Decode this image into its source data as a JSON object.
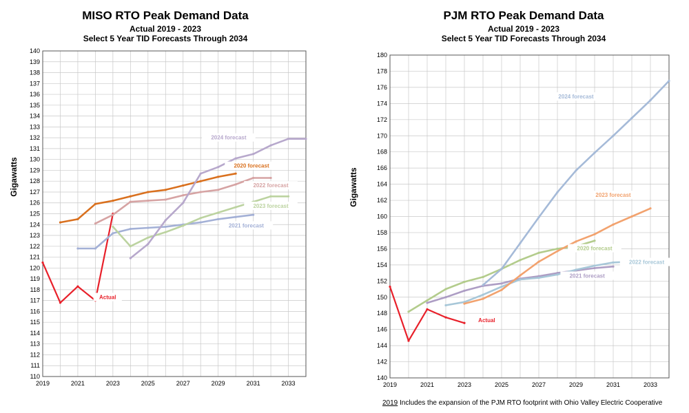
{
  "chart_data": [
    {
      "type": "line",
      "title": "MISO RTO  Peak Demand Data",
      "subtitle": "Actual 2019 - 2023",
      "subtitle2": "Select 5 Year TID Forecasts Through 2034",
      "ylabel": "Gigawatts",
      "xlabel": "",
      "xlim": [
        2019,
        2034
      ],
      "ylim": [
        110,
        140
      ],
      "ytick_step": 1,
      "xticks": [
        "2019",
        "2021",
        "2023",
        "2025",
        "2027",
        "2029",
        "2031",
        "2033"
      ],
      "yticks": [
        "110",
        "111",
        "112",
        "113",
        "114",
        "115",
        "116",
        "117",
        "118",
        "119",
        "120",
        "121",
        "122",
        "123",
        "124",
        "125",
        "126",
        "127",
        "128",
        "129",
        "130",
        "131",
        "132",
        "133",
        "134",
        "135",
        "136",
        "137",
        "138",
        "139",
        "140"
      ],
      "grid": true,
      "series": [
        {
          "name": "Actual",
          "color": "#e8202a",
          "x": [
            2019,
            2020,
            2021,
            2022,
            2023
          ],
          "y": [
            120.5,
            116.8,
            118.3,
            117.0,
            125.0
          ],
          "label_x": 2022.7,
          "label_y": 117.2
        },
        {
          "name": "2020 forecast",
          "color": "#d9701e",
          "x": [
            2020,
            2021,
            2022,
            2023,
            2024,
            2025,
            2026,
            2027,
            2028,
            2029,
            2030
          ],
          "y": [
            124.2,
            124.5,
            125.9,
            126.2,
            126.6,
            127.0,
            127.2,
            127.6,
            128.0,
            128.4,
            128.7
          ],
          "label_x": 2030.9,
          "label_y": 129.3
        },
        {
          "name": "2021 forecast",
          "color": "#a3b0d6",
          "x": [
            2021,
            2022,
            2023,
            2024,
            2025,
            2026,
            2027,
            2028,
            2029,
            2030,
            2031
          ],
          "y": [
            121.8,
            121.8,
            123.2,
            123.6,
            123.7,
            123.8,
            124.0,
            124.2,
            124.5,
            124.7,
            124.9
          ],
          "label_x": 2030.6,
          "label_y": 123.8
        },
        {
          "name": "2022 forecast",
          "color": "#d6a3a3",
          "x": [
            2022,
            2023,
            2024,
            2025,
            2026,
            2027,
            2028,
            2029,
            2030,
            2031,
            2032
          ],
          "y": [
            124.1,
            124.9,
            126.1,
            126.2,
            126.3,
            126.7,
            127.0,
            127.2,
            127.7,
            128.3,
            128.3
          ],
          "label_x": 2032.0,
          "label_y": 127.5
        },
        {
          "name": "2023 forecast",
          "color": "#bcd3a0",
          "x": [
            2023,
            2024,
            2025,
            2026,
            2027,
            2028,
            2029,
            2030,
            2031,
            2032,
            2033
          ],
          "y": [
            123.8,
            122.0,
            122.8,
            123.3,
            123.9,
            124.6,
            125.1,
            125.6,
            126.1,
            126.6,
            126.6
          ],
          "label_x": 2032.0,
          "label_y": 125.6
        },
        {
          "name": "2024 forecast",
          "color": "#b7a8cc",
          "x": [
            2024,
            2025,
            2026,
            2027,
            2028,
            2029,
            2030,
            2031,
            2032,
            2033,
            2034
          ],
          "y": [
            120.9,
            122.2,
            124.4,
            126.0,
            128.7,
            129.3,
            130.1,
            130.5,
            131.3,
            131.9,
            131.9
          ],
          "label_x": 2029.6,
          "label_y": 131.9
        }
      ]
    },
    {
      "type": "line",
      "title": "PJM  RTO Peak Demand Data",
      "subtitle": "Actual 2019 - 2023",
      "subtitle2": "Select 5 Year TID Forecasts Through 2034",
      "ylabel": "Gigawatts",
      "xlabel": "",
      "xlim": [
        2019,
        2034
      ],
      "ylim": [
        140,
        180
      ],
      "ytick_step": 2,
      "xticks": [
        "2019",
        "2021",
        "2023",
        "2025",
        "2027",
        "2029",
        "2031",
        "2033"
      ],
      "yticks": [
        "140",
        "142",
        "144",
        "146",
        "148",
        "150",
        "152",
        "154",
        "156",
        "158",
        "160",
        "162",
        "164",
        "166",
        "168",
        "170",
        "172",
        "174",
        "176",
        "178",
        "180"
      ],
      "grid": true,
      "series": [
        {
          "name": "Actual",
          "color": "#e8202a",
          "x": [
            2019,
            2020,
            2021,
            2022,
            2023
          ],
          "y": [
            151.3,
            144.6,
            148.5,
            147.5,
            146.8
          ],
          "label_x": 2024.2,
          "label_y": 147.0
        },
        {
          "name": "2020 forecast",
          "color": "#b3cc8c",
          "x": [
            2020,
            2021,
            2022,
            2023,
            2024,
            2025,
            2026,
            2027,
            2028,
            2029,
            2030
          ],
          "y": [
            148.2,
            149.6,
            151.0,
            151.9,
            152.5,
            153.5,
            154.6,
            155.5,
            156.0,
            156.3,
            157.0
          ],
          "label_x": 2030.0,
          "label_y": 155.9
        },
        {
          "name": "2021 forecast",
          "color": "#ad9dc4",
          "x": [
            2021,
            2022,
            2023,
            2024,
            2025,
            2026,
            2027,
            2028,
            2029,
            2030,
            2031
          ],
          "y": [
            149.3,
            150.0,
            150.8,
            151.4,
            151.7,
            152.3,
            152.6,
            153.0,
            153.3,
            153.6,
            153.8
          ],
          "label_x": 2029.6,
          "label_y": 152.5
        },
        {
          "name": "2022 forecast",
          "color": "#a7c7d8",
          "x": [
            2022,
            2023,
            2024,
            2025,
            2026,
            2027,
            2028,
            2029,
            2030,
            2031,
            2032
          ],
          "y": [
            149.0,
            149.4,
            150.3,
            151.3,
            152.2,
            152.4,
            152.8,
            153.4,
            153.9,
            154.3,
            154.4
          ],
          "label_x": 2032.8,
          "label_y": 154.2
        },
        {
          "name": "2023 forecast",
          "color": "#f2a26e",
          "x": [
            2023,
            2024,
            2025,
            2026,
            2027,
            2028,
            2029,
            2030,
            2031,
            2032,
            2033
          ],
          "y": [
            149.2,
            149.8,
            150.9,
            152.7,
            154.4,
            155.7,
            156.9,
            157.8,
            159.0,
            160.0,
            161.0
          ],
          "label_x": 2031.0,
          "label_y": 162.5
        },
        {
          "name": "2024 forecast",
          "color": "#a5bad8",
          "x": [
            2024,
            2025,
            2026,
            2027,
            2028,
            2029,
            2030,
            2031,
            2032,
            2033,
            2034
          ],
          "y": [
            151.5,
            153.5,
            156.7,
            159.9,
            163.0,
            165.7,
            167.9,
            170.0,
            172.2,
            174.4,
            176.8
          ],
          "label_x": 2029.0,
          "label_y": 174.7
        }
      ]
    }
  ],
  "footnote": {
    "year": "2019",
    "text": " Includes the expansion of the PJM RTO footprint with Ohio Valley Electric Cooperative"
  }
}
